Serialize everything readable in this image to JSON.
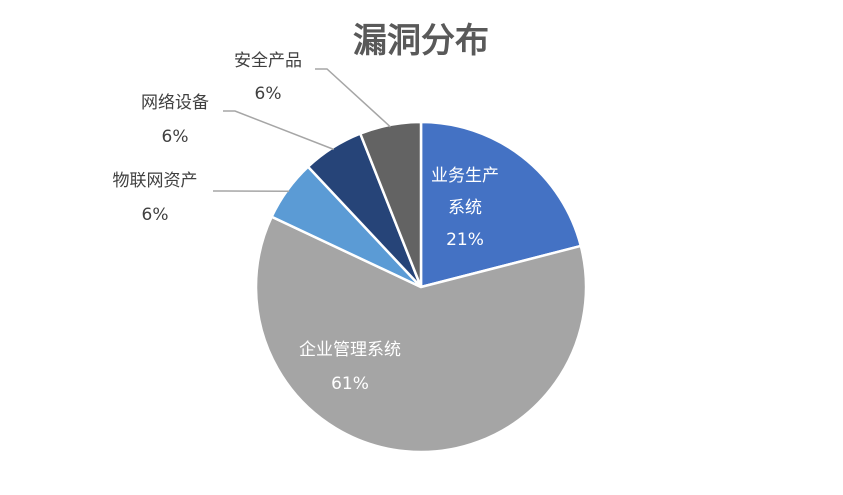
{
  "chart_data": {
    "type": "pie",
    "title": "漏洞分布",
    "categories": [
      "业务生产系统",
      "企业管理系统",
      "物联网资产",
      "网络设备",
      "安全产品"
    ],
    "values": [
      21,
      61,
      6,
      6,
      6
    ],
    "unit": "%",
    "colors": [
      "#4472C4",
      "#A5A5A5",
      "#5B9BD5",
      "#264478",
      "#636363"
    ],
    "data_labels": [
      {
        "lines": [
          "业务生产",
          "系统",
          "21%"
        ],
        "placement": "inside"
      },
      {
        "lines": [
          "企业管理系统",
          "61%"
        ],
        "placement": "inside"
      },
      {
        "lines": [
          "物联网资产",
          "6%"
        ],
        "placement": "outside"
      },
      {
        "lines": [
          "网络设备",
          "6%"
        ],
        "placement": "outside"
      },
      {
        "lines": [
          "安全产品",
          "6%"
        ],
        "placement": "outside"
      }
    ],
    "legend": "none",
    "start_angle": "12 o'clock",
    "direction": "clockwise"
  }
}
